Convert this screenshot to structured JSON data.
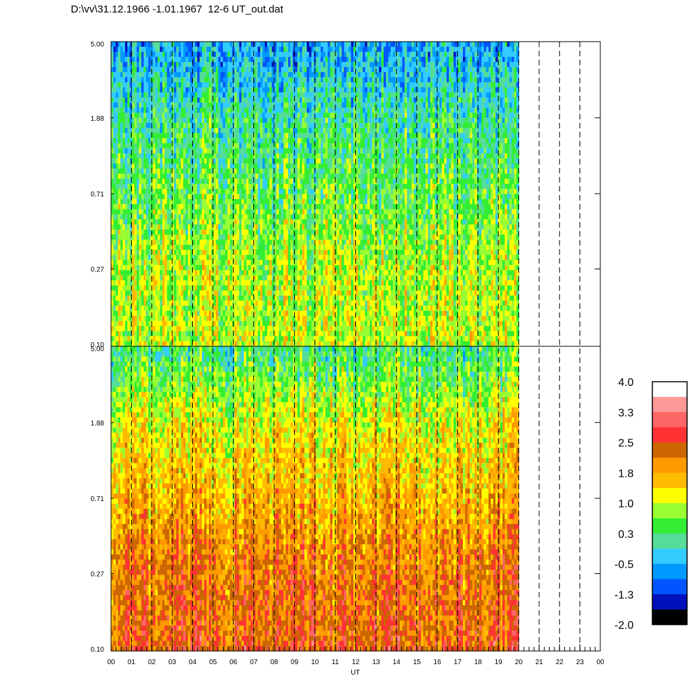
{
  "title": "D:\\vv\\31.12.1966 -1.01.1967  12-6 UT_out.dat",
  "chart_data": {
    "type": "heatmap",
    "title": "D:\\vv\\31.12.1966 -1.01.1967  12-6 UT_out.dat",
    "xlabel": "UT",
    "x_ticks": [
      "00",
      "01",
      "02",
      "03",
      "04",
      "05",
      "06",
      "07",
      "08",
      "09",
      "10",
      "11",
      "12",
      "13",
      "14",
      "15",
      "16",
      "17",
      "18",
      "19",
      "20",
      "21",
      "22",
      "23",
      "00"
    ],
    "xlim": [
      0,
      24
    ],
    "data_end_ut": 20,
    "panels": [
      {
        "name": "upper",
        "ylim": [
          0.1,
          5.0
        ],
        "y_scale": "log",
        "y_ticks": [
          "5.00",
          "1.88",
          "0.71",
          "0.27",
          "0.10"
        ],
        "level_profile": [
          {
            "y": 0.1,
            "level": 1.0
          },
          {
            "y": 0.27,
            "level": 0.9
          },
          {
            "y": 0.71,
            "level": 0.5
          },
          {
            "y": 1.88,
            "level": 0.1
          },
          {
            "y": 5.0,
            "level": -0.6
          }
        ]
      },
      {
        "name": "lower",
        "ylim": [
          0.1,
          5.0
        ],
        "y_scale": "log",
        "y_ticks": [
          "5.00",
          "1.88",
          "0.71",
          "0.27",
          "0.10"
        ],
        "level_profile": [
          {
            "y": 0.1,
            "level": 2.4
          },
          {
            "y": 0.27,
            "level": 2.2
          },
          {
            "y": 0.71,
            "level": 1.7
          },
          {
            "y": 1.88,
            "level": 1.2
          },
          {
            "y": 5.0,
            "level": 0.2
          }
        ]
      }
    ],
    "colorbar": {
      "labels": [
        "4.0",
        "3.3",
        "2.5",
        "1.8",
        "1.0",
        "0.3",
        "-0.5",
        "-1.3",
        "-2.0"
      ],
      "colors": [
        "#ffffff",
        "#ff9999",
        "#ff6666",
        "#ff3333",
        "#cc6600",
        "#ff9900",
        "#ffbb00",
        "#ffff00",
        "#99ff33",
        "#33ee33",
        "#55dd99",
        "#33ccff",
        "#0099ff",
        "#0055ff",
        "#0011bb",
        "#000000"
      ]
    }
  }
}
